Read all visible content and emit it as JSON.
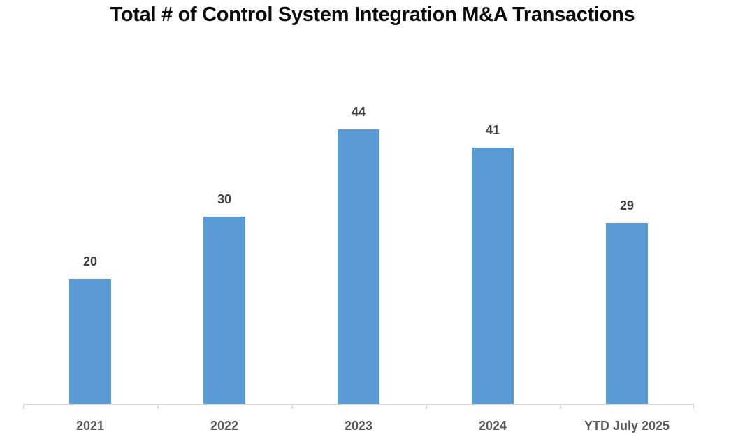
{
  "chart_data": {
    "type": "bar",
    "title": "Total # of Control System Integration M&A Transactions",
    "categories": [
      "2021",
      "2022",
      "2023",
      "2024",
      "YTD July 2025"
    ],
    "values": [
      20,
      30,
      44,
      41,
      29
    ],
    "xlabel": "",
    "ylabel": "",
    "ylim": [
      0,
      50
    ],
    "grid": false,
    "legend": false,
    "data_labels_shown": true,
    "colors": {
      "bar_fill": "#5B9BD5",
      "axis_line": "#D9D9D9",
      "title_text": "#0A0A0A",
      "data_label_text": "#404040",
      "category_label_text": "#595959",
      "background": "#FFFFFF"
    }
  }
}
